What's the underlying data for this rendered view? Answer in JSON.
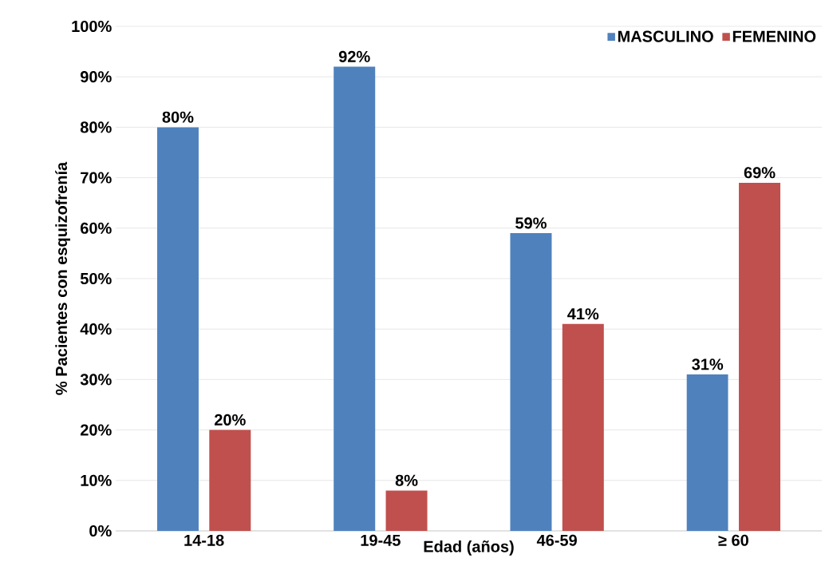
{
  "chart_data": {
    "type": "bar",
    "xlabel": "Edad (años)",
    "ylabel": "% Pacientes con esquizofrenía",
    "categories": [
      "14-18",
      "19-45",
      "46-59",
      "≥ 60"
    ],
    "series": [
      {
        "name": "MASCULINO",
        "color": "#4f81bd",
        "values": [
          80,
          92,
          59,
          31
        ],
        "value_labels": [
          "80%",
          "92%",
          "59%",
          "31%"
        ]
      },
      {
        "name": "FEMENINO",
        "color": "#c0504d",
        "values": [
          20,
          8,
          41,
          69
        ],
        "value_labels": [
          "20%",
          "8%",
          "41%",
          "69%"
        ]
      }
    ],
    "ylim": [
      0,
      100
    ],
    "yticks": [
      {
        "value": 0,
        "label": "0%"
      },
      {
        "value": 10,
        "label": "10%"
      },
      {
        "value": 20,
        "label": "20%"
      },
      {
        "value": 30,
        "label": "30%"
      },
      {
        "value": 40,
        "label": "40%"
      },
      {
        "value": 50,
        "label": "50%"
      },
      {
        "value": 60,
        "label": "60%"
      },
      {
        "value": 70,
        "label": "70%"
      },
      {
        "value": 80,
        "label": "80%"
      },
      {
        "value": 90,
        "label": "90%"
      },
      {
        "value": 100,
        "label": "100%"
      }
    ],
    "grid": "y",
    "legend": "top right"
  }
}
